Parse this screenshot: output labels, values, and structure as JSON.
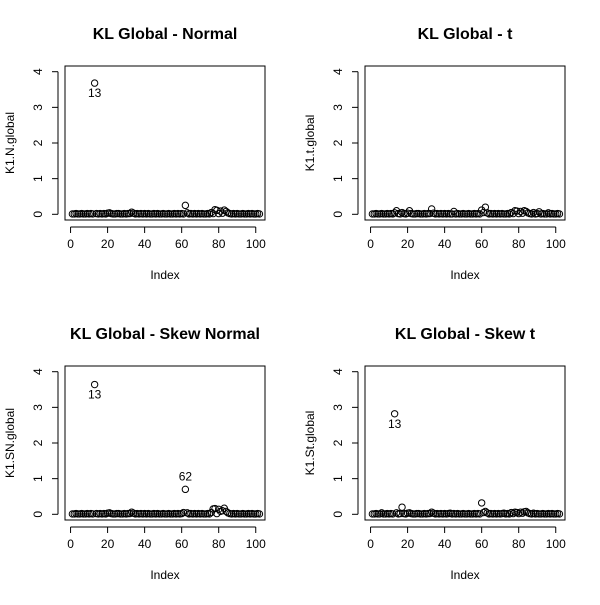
{
  "chart_data": [
    {
      "type": "scatter",
      "title": "KL Global - Normal",
      "xlabel": "Index",
      "ylabel": "K1.N.global",
      "xlim": [
        -3,
        105
      ],
      "ylim": [
        -0.16,
        4.16
      ],
      "xticks": [
        "0",
        "20",
        "40",
        "60",
        "80",
        "100"
      ],
      "yticks": [
        "0",
        "1",
        "2",
        "3",
        "4"
      ],
      "x": [
        1,
        2,
        3,
        4,
        5,
        6,
        7,
        8,
        9,
        10,
        11,
        12,
        13,
        14,
        15,
        16,
        17,
        18,
        19,
        20,
        21,
        22,
        23,
        24,
        25,
        26,
        27,
        28,
        29,
        30,
        31,
        32,
        33,
        34,
        35,
        36,
        37,
        38,
        39,
        40,
        41,
        42,
        43,
        44,
        45,
        46,
        47,
        48,
        49,
        50,
        51,
        52,
        53,
        54,
        55,
        56,
        57,
        58,
        59,
        60,
        61,
        62,
        63,
        64,
        65,
        66,
        67,
        68,
        69,
        70,
        71,
        72,
        73,
        74,
        75,
        76,
        77,
        78,
        79,
        80,
        81,
        82,
        83,
        84,
        85,
        86,
        87,
        88,
        89,
        90,
        91,
        92,
        93,
        94,
        95,
        96,
        97,
        98,
        99,
        100,
        101,
        102
      ],
      "y": [
        0.01,
        0.01,
        0.02,
        0.01,
        0.01,
        0.02,
        0.01,
        0.01,
        0.02,
        0.01,
        0.02,
        0.01,
        3.68,
        0.02,
        0.01,
        0.02,
        0.01,
        0.02,
        0.01,
        0.03,
        0.04,
        0.02,
        0.01,
        0.01,
        0.02,
        0.02,
        0.01,
        0.01,
        0.02,
        0.01,
        0.02,
        0.02,
        0.06,
        0.03,
        0.01,
        0.02,
        0.01,
        0.02,
        0.01,
        0.02,
        0.01,
        0.02,
        0.01,
        0.01,
        0.02,
        0.01,
        0.02,
        0.01,
        0.01,
        0.02,
        0.01,
        0.01,
        0.02,
        0.01,
        0.01,
        0.02,
        0.01,
        0.02,
        0.01,
        0.02,
        0.01,
        0.25,
        0.04,
        0.01,
        0.02,
        0.01,
        0.02,
        0.01,
        0.02,
        0.01,
        0.02,
        0.01,
        0.01,
        0.02,
        0.01,
        0.05,
        0.02,
        0.13,
        0.11,
        0.02,
        0.09,
        0.03,
        0.12,
        0.08,
        0.04,
        0.02,
        0.01,
        0.02,
        0.01,
        0.02,
        0.01,
        0.01,
        0.02,
        0.01,
        0.01,
        0.02,
        0.01,
        0.02,
        0.01,
        0.01,
        0.02,
        0.01
      ],
      "annotations": [
        {
          "x": 13,
          "y": 3.68,
          "text": "13"
        }
      ]
    },
    {
      "type": "scatter",
      "title": "KL Global - t",
      "xlabel": "Index",
      "ylabel": "K1.t.global",
      "xlim": [
        -3,
        105
      ],
      "ylim": [
        -0.16,
        4.16
      ],
      "xticks": [
        "0",
        "20",
        "40",
        "60",
        "80",
        "100"
      ],
      "yticks": [
        "0",
        "1",
        "2",
        "3",
        "4"
      ],
      "x": [
        1,
        2,
        3,
        4,
        5,
        6,
        7,
        8,
        9,
        10,
        11,
        12,
        13,
        14,
        15,
        16,
        17,
        18,
        19,
        20,
        21,
        22,
        23,
        24,
        25,
        26,
        27,
        28,
        29,
        30,
        31,
        32,
        33,
        34,
        35,
        36,
        37,
        38,
        39,
        40,
        41,
        42,
        43,
        44,
        45,
        46,
        47,
        48,
        49,
        50,
        51,
        52,
        53,
        54,
        55,
        56,
        57,
        58,
        59,
        60,
        61,
        62,
        63,
        64,
        65,
        66,
        67,
        68,
        69,
        70,
        71,
        72,
        73,
        74,
        75,
        76,
        77,
        78,
        79,
        80,
        81,
        82,
        83,
        84,
        85,
        86,
        87,
        88,
        89,
        90,
        91,
        92,
        93,
        94,
        95,
        96,
        97,
        98,
        99,
        100,
        101,
        102
      ],
      "y": [
        0.01,
        0.01,
        0.02,
        0.01,
        0.01,
        0.02,
        0.01,
        0.01,
        0.02,
        0.01,
        0.02,
        0.01,
        0.04,
        0.1,
        0.02,
        0.01,
        0.05,
        0.02,
        0.01,
        0.03,
        0.1,
        0.02,
        0.01,
        0.01,
        0.02,
        0.02,
        0.01,
        0.01,
        0.02,
        0.01,
        0.02,
        0.02,
        0.15,
        0.03,
        0.01,
        0.02,
        0.01,
        0.02,
        0.01,
        0.02,
        0.01,
        0.02,
        0.01,
        0.01,
        0.08,
        0.01,
        0.02,
        0.01,
        0.01,
        0.02,
        0.01,
        0.01,
        0.02,
        0.01,
        0.01,
        0.02,
        0.01,
        0.02,
        0.01,
        0.12,
        0.05,
        0.2,
        0.04,
        0.01,
        0.02,
        0.01,
        0.02,
        0.01,
        0.02,
        0.01,
        0.02,
        0.01,
        0.01,
        0.02,
        0.01,
        0.05,
        0.02,
        0.1,
        0.09,
        0.02,
        0.08,
        0.03,
        0.1,
        0.08,
        0.04,
        0.02,
        0.01,
        0.05,
        0.01,
        0.02,
        0.07,
        0.01,
        0.02,
        0.01,
        0.01,
        0.04,
        0.01,
        0.02,
        0.01,
        0.01,
        0.02,
        0.01
      ]
    },
    {
      "type": "scatter",
      "title": "KL Global - Skew Normal",
      "xlabel": "Index",
      "ylabel": "K1.SN.global",
      "xlim": [
        -3,
        105
      ],
      "ylim": [
        -0.16,
        4.16
      ],
      "xticks": [
        "0",
        "20",
        "40",
        "60",
        "80",
        "100"
      ],
      "yticks": [
        "0",
        "1",
        "2",
        "3",
        "4"
      ],
      "x": [
        1,
        2,
        3,
        4,
        5,
        6,
        7,
        8,
        9,
        10,
        11,
        12,
        13,
        14,
        15,
        16,
        17,
        18,
        19,
        20,
        21,
        22,
        23,
        24,
        25,
        26,
        27,
        28,
        29,
        30,
        31,
        32,
        33,
        34,
        35,
        36,
        37,
        38,
        39,
        40,
        41,
        42,
        43,
        44,
        45,
        46,
        47,
        48,
        49,
        50,
        51,
        52,
        53,
        54,
        55,
        56,
        57,
        58,
        59,
        60,
        61,
        62,
        63,
        64,
        65,
        66,
        67,
        68,
        69,
        70,
        71,
        72,
        73,
        74,
        75,
        76,
        77,
        78,
        79,
        80,
        81,
        82,
        83,
        84,
        85,
        86,
        87,
        88,
        89,
        90,
        91,
        92,
        93,
        94,
        95,
        96,
        97,
        98,
        99,
        100,
        101,
        102
      ],
      "y": [
        0.01,
        0.01,
        0.02,
        0.01,
        0.01,
        0.02,
        0.01,
        0.01,
        0.02,
        0.01,
        0.02,
        0.01,
        3.64,
        0.02,
        0.01,
        0.02,
        0.01,
        0.02,
        0.01,
        0.03,
        0.04,
        0.02,
        0.01,
        0.01,
        0.02,
        0.02,
        0.01,
        0.01,
        0.02,
        0.01,
        0.02,
        0.02,
        0.06,
        0.03,
        0.01,
        0.02,
        0.01,
        0.02,
        0.01,
        0.02,
        0.01,
        0.02,
        0.01,
        0.01,
        0.02,
        0.01,
        0.02,
        0.01,
        0.01,
        0.02,
        0.01,
        0.01,
        0.02,
        0.01,
        0.01,
        0.02,
        0.01,
        0.02,
        0.01,
        0.02,
        0.05,
        0.7,
        0.04,
        0.01,
        0.02,
        0.01,
        0.02,
        0.01,
        0.02,
        0.01,
        0.02,
        0.01,
        0.01,
        0.02,
        0.01,
        0.05,
        0.15,
        0.16,
        0.02,
        0.14,
        0.08,
        0.1,
        0.17,
        0.08,
        0.04,
        0.02,
        0.01,
        0.02,
        0.01,
        0.02,
        0.01,
        0.01,
        0.02,
        0.01,
        0.01,
        0.02,
        0.01,
        0.02,
        0.01,
        0.01,
        0.02,
        0.01
      ],
      "annotations": [
        {
          "x": 13,
          "y": 3.64,
          "text": "13"
        },
        {
          "x": 62,
          "y": 0.7,
          "text": "62"
        }
      ]
    },
    {
      "type": "scatter",
      "title": "KL Global - Skew t",
      "xlabel": "Index",
      "ylabel": "K1.St.global",
      "xlim": [
        -3,
        105
      ],
      "ylim": [
        -0.16,
        4.16
      ],
      "xticks": [
        "0",
        "20",
        "40",
        "60",
        "80",
        "100"
      ],
      "yticks": [
        "0",
        "1",
        "2",
        "3",
        "4"
      ],
      "x": [
        1,
        2,
        3,
        4,
        5,
        6,
        7,
        8,
        9,
        10,
        11,
        12,
        13,
        14,
        15,
        16,
        17,
        18,
        19,
        20,
        21,
        22,
        23,
        24,
        25,
        26,
        27,
        28,
        29,
        30,
        31,
        32,
        33,
        34,
        35,
        36,
        37,
        38,
        39,
        40,
        41,
        42,
        43,
        44,
        45,
        46,
        47,
        48,
        49,
        50,
        51,
        52,
        53,
        54,
        55,
        56,
        57,
        58,
        59,
        60,
        61,
        62,
        63,
        64,
        65,
        66,
        67,
        68,
        69,
        70,
        71,
        72,
        73,
        74,
        75,
        76,
        77,
        78,
        79,
        80,
        81,
        82,
        83,
        84,
        85,
        86,
        87,
        88,
        89,
        90,
        91,
        92,
        93,
        94,
        95,
        96,
        97,
        98,
        99,
        100,
        101,
        102
      ],
      "y": [
        0.01,
        0.01,
        0.02,
        0.01,
        0.01,
        0.04,
        0.01,
        0.01,
        0.02,
        0.01,
        0.02,
        0.01,
        2.82,
        0.04,
        0.01,
        0.02,
        0.2,
        0.02,
        0.01,
        0.03,
        0.04,
        0.02,
        0.01,
        0.01,
        0.02,
        0.02,
        0.01,
        0.01,
        0.02,
        0.01,
        0.02,
        0.02,
        0.06,
        0.03,
        0.01,
        0.02,
        0.01,
        0.02,
        0.01,
        0.02,
        0.01,
        0.02,
        0.03,
        0.01,
        0.02,
        0.01,
        0.02,
        0.01,
        0.01,
        0.02,
        0.01,
        0.01,
        0.02,
        0.01,
        0.01,
        0.02,
        0.01,
        0.02,
        0.01,
        0.32,
        0.05,
        0.08,
        0.04,
        0.01,
        0.02,
        0.01,
        0.02,
        0.01,
        0.02,
        0.01,
        0.02,
        0.03,
        0.01,
        0.02,
        0.01,
        0.05,
        0.02,
        0.06,
        0.05,
        0.02,
        0.06,
        0.03,
        0.07,
        0.08,
        0.04,
        0.02,
        0.01,
        0.03,
        0.01,
        0.02,
        0.01,
        0.01,
        0.02,
        0.01,
        0.01,
        0.02,
        0.01,
        0.02,
        0.01,
        0.01,
        0.02,
        0.01
      ],
      "annotations": [
        {
          "x": 13,
          "y": 2.82,
          "text": "13"
        }
      ]
    }
  ]
}
